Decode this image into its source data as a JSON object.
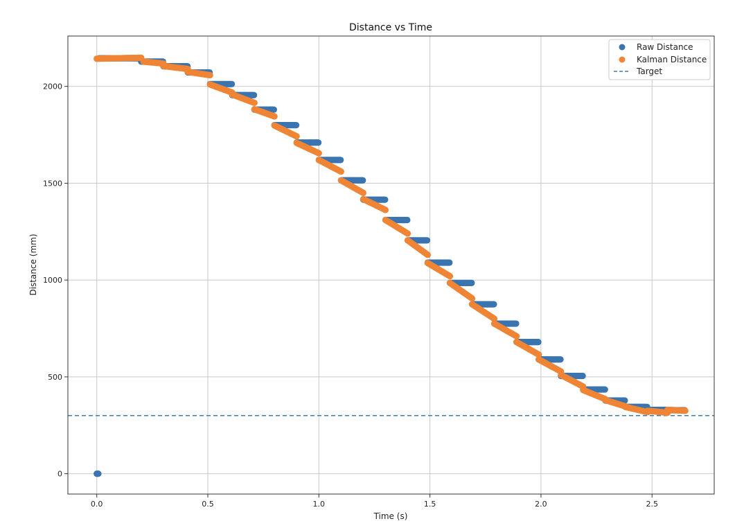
{
  "chart_data": {
    "type": "scatter",
    "title": "Distance vs Time",
    "xlabel": "Time (s)",
    "ylabel": "Distance (mm)",
    "xlim": [
      -0.13,
      2.78
    ],
    "ylim": [
      -105,
      2260
    ],
    "xticks": [
      0.0,
      0.5,
      1.0,
      1.5,
      2.0,
      2.5
    ],
    "xtick_labels": [
      "0.0",
      "0.5",
      "1.0",
      "1.5",
      "2.0",
      "2.5"
    ],
    "yticks": [
      0,
      500,
      1000,
      1500,
      2000
    ],
    "ytick_labels": [
      "0",
      "500",
      "1000",
      "1500",
      "2000"
    ],
    "grid": true,
    "legend_position": "top-right",
    "colors": {
      "raw": "#3a75b0",
      "kalman": "#ef8535",
      "target": "#3b7fae",
      "grid": "#c8c8c8",
      "axis": "#333333"
    },
    "series": [
      {
        "name": "Raw Distance",
        "kind": "scatter",
        "steps": [
          {
            "x0": 0.0,
            "x1": 0.01,
            "y": 0
          },
          {
            "x0": 0.01,
            "x1": 0.2,
            "y": 2145
          },
          {
            "x0": 0.2,
            "x1": 0.3,
            "y": 2128
          },
          {
            "x0": 0.3,
            "x1": 0.41,
            "y": 2104
          },
          {
            "x0": 0.41,
            "x1": 0.51,
            "y": 2072
          },
          {
            "x0": 0.51,
            "x1": 0.61,
            "y": 2012
          },
          {
            "x0": 0.61,
            "x1": 0.71,
            "y": 1955
          },
          {
            "x0": 0.71,
            "x1": 0.8,
            "y": 1880
          },
          {
            "x0": 0.8,
            "x1": 0.9,
            "y": 1800
          },
          {
            "x0": 0.9,
            "x1": 1.0,
            "y": 1710
          },
          {
            "x0": 1.0,
            "x1": 1.1,
            "y": 1620
          },
          {
            "x0": 1.1,
            "x1": 1.2,
            "y": 1515
          },
          {
            "x0": 1.2,
            "x1": 1.3,
            "y": 1415
          },
          {
            "x0": 1.3,
            "x1": 1.4,
            "y": 1310
          },
          {
            "x0": 1.4,
            "x1": 1.49,
            "y": 1205
          },
          {
            "x0": 1.49,
            "x1": 1.59,
            "y": 1090
          },
          {
            "x0": 1.59,
            "x1": 1.69,
            "y": 985
          },
          {
            "x0": 1.69,
            "x1": 1.79,
            "y": 875
          },
          {
            "x0": 1.79,
            "x1": 1.89,
            "y": 775
          },
          {
            "x0": 1.89,
            "x1": 1.99,
            "y": 680
          },
          {
            "x0": 1.99,
            "x1": 2.09,
            "y": 590
          },
          {
            "x0": 2.09,
            "x1": 2.19,
            "y": 505
          },
          {
            "x0": 2.19,
            "x1": 2.29,
            "y": 435
          },
          {
            "x0": 2.29,
            "x1": 2.38,
            "y": 378
          },
          {
            "x0": 2.38,
            "x1": 2.48,
            "y": 345
          },
          {
            "x0": 2.48,
            "x1": 2.57,
            "y": 330
          },
          {
            "x0": 2.57,
            "x1": 2.65,
            "y": 328
          }
        ]
      },
      {
        "name": "Kalman Distance",
        "kind": "scatter",
        "segments": [
          {
            "x0": 0.0,
            "x1": 0.2,
            "y0": 2143,
            "y1": 2148
          },
          {
            "x0": 0.21,
            "x1": 0.3,
            "y0": 2128,
            "y1": 2118
          },
          {
            "x0": 0.3,
            "x1": 0.41,
            "y0": 2105,
            "y1": 2090
          },
          {
            "x0": 0.41,
            "x1": 0.51,
            "y0": 2075,
            "y1": 2058
          },
          {
            "x0": 0.51,
            "x1": 0.61,
            "y0": 2010,
            "y1": 1968
          },
          {
            "x0": 0.61,
            "x1": 0.71,
            "y0": 1958,
            "y1": 1915
          },
          {
            "x0": 0.71,
            "x1": 0.8,
            "y0": 1882,
            "y1": 1845
          },
          {
            "x0": 0.8,
            "x1": 0.9,
            "y0": 1798,
            "y1": 1742
          },
          {
            "x0": 0.9,
            "x1": 1.0,
            "y0": 1708,
            "y1": 1655
          },
          {
            "x0": 1.0,
            "x1": 1.1,
            "y0": 1620,
            "y1": 1560
          },
          {
            "x0": 1.1,
            "x1": 1.2,
            "y0": 1515,
            "y1": 1450
          },
          {
            "x0": 1.2,
            "x1": 1.3,
            "y0": 1418,
            "y1": 1362
          },
          {
            "x0": 1.3,
            "x1": 1.4,
            "y0": 1310,
            "y1": 1240
          },
          {
            "x0": 1.4,
            "x1": 1.49,
            "y0": 1205,
            "y1": 1130
          },
          {
            "x0": 1.49,
            "x1": 1.59,
            "y0": 1088,
            "y1": 1020
          },
          {
            "x0": 1.59,
            "x1": 1.69,
            "y0": 985,
            "y1": 905
          },
          {
            "x0": 1.69,
            "x1": 1.79,
            "y0": 875,
            "y1": 800
          },
          {
            "x0": 1.79,
            "x1": 1.89,
            "y0": 775,
            "y1": 710
          },
          {
            "x0": 1.89,
            "x1": 1.99,
            "y0": 680,
            "y1": 615
          },
          {
            "x0": 1.99,
            "x1": 2.09,
            "y0": 590,
            "y1": 528
          },
          {
            "x0": 2.09,
            "x1": 2.19,
            "y0": 510,
            "y1": 450
          },
          {
            "x0": 2.19,
            "x1": 2.29,
            "y0": 432,
            "y1": 385
          },
          {
            "x0": 2.29,
            "x1": 2.38,
            "y0": 380,
            "y1": 348
          },
          {
            "x0": 2.38,
            "x1": 2.48,
            "y0": 345,
            "y1": 318
          },
          {
            "x0": 2.48,
            "x1": 2.57,
            "y0": 325,
            "y1": 315
          },
          {
            "x0": 2.57,
            "x1": 2.65,
            "y0": 330,
            "y1": 325
          }
        ]
      },
      {
        "name": "Target",
        "kind": "hline",
        "y": 300
      }
    ],
    "legend": [
      "Raw Distance",
      "Kalman Distance",
      "Target"
    ]
  }
}
